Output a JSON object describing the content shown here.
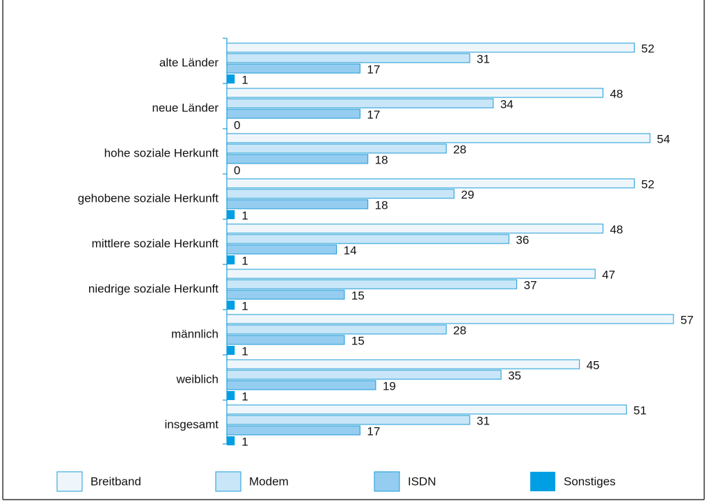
{
  "chart_data": {
    "type": "bar",
    "orientation": "horizontal",
    "categories": [
      "alte Länder",
      "neue Länder",
      "hohe soziale Herkunft",
      "gehobene soziale Herkunft",
      "mittlere soziale Herkunft",
      "niedrige soziale Herkunft",
      "männlich",
      "weiblich",
      "insgesamt"
    ],
    "series": [
      {
        "name": "Breitband",
        "color": "#eef6fc",
        "values": [
          52,
          48,
          54,
          52,
          48,
          47,
          57,
          45,
          51
        ]
      },
      {
        "name": "Modem",
        "color": "#c8e6f7",
        "values": [
          31,
          34,
          28,
          29,
          36,
          37,
          28,
          35,
          31
        ]
      },
      {
        "name": "ISDN",
        "color": "#95cdf0",
        "values": [
          17,
          17,
          18,
          18,
          14,
          15,
          15,
          19,
          17
        ]
      },
      {
        "name": "Sonstiges",
        "color": "#009fe3",
        "values": [
          1,
          0,
          0,
          1,
          1,
          1,
          1,
          1,
          1
        ]
      }
    ],
    "legend": "bottom"
  }
}
